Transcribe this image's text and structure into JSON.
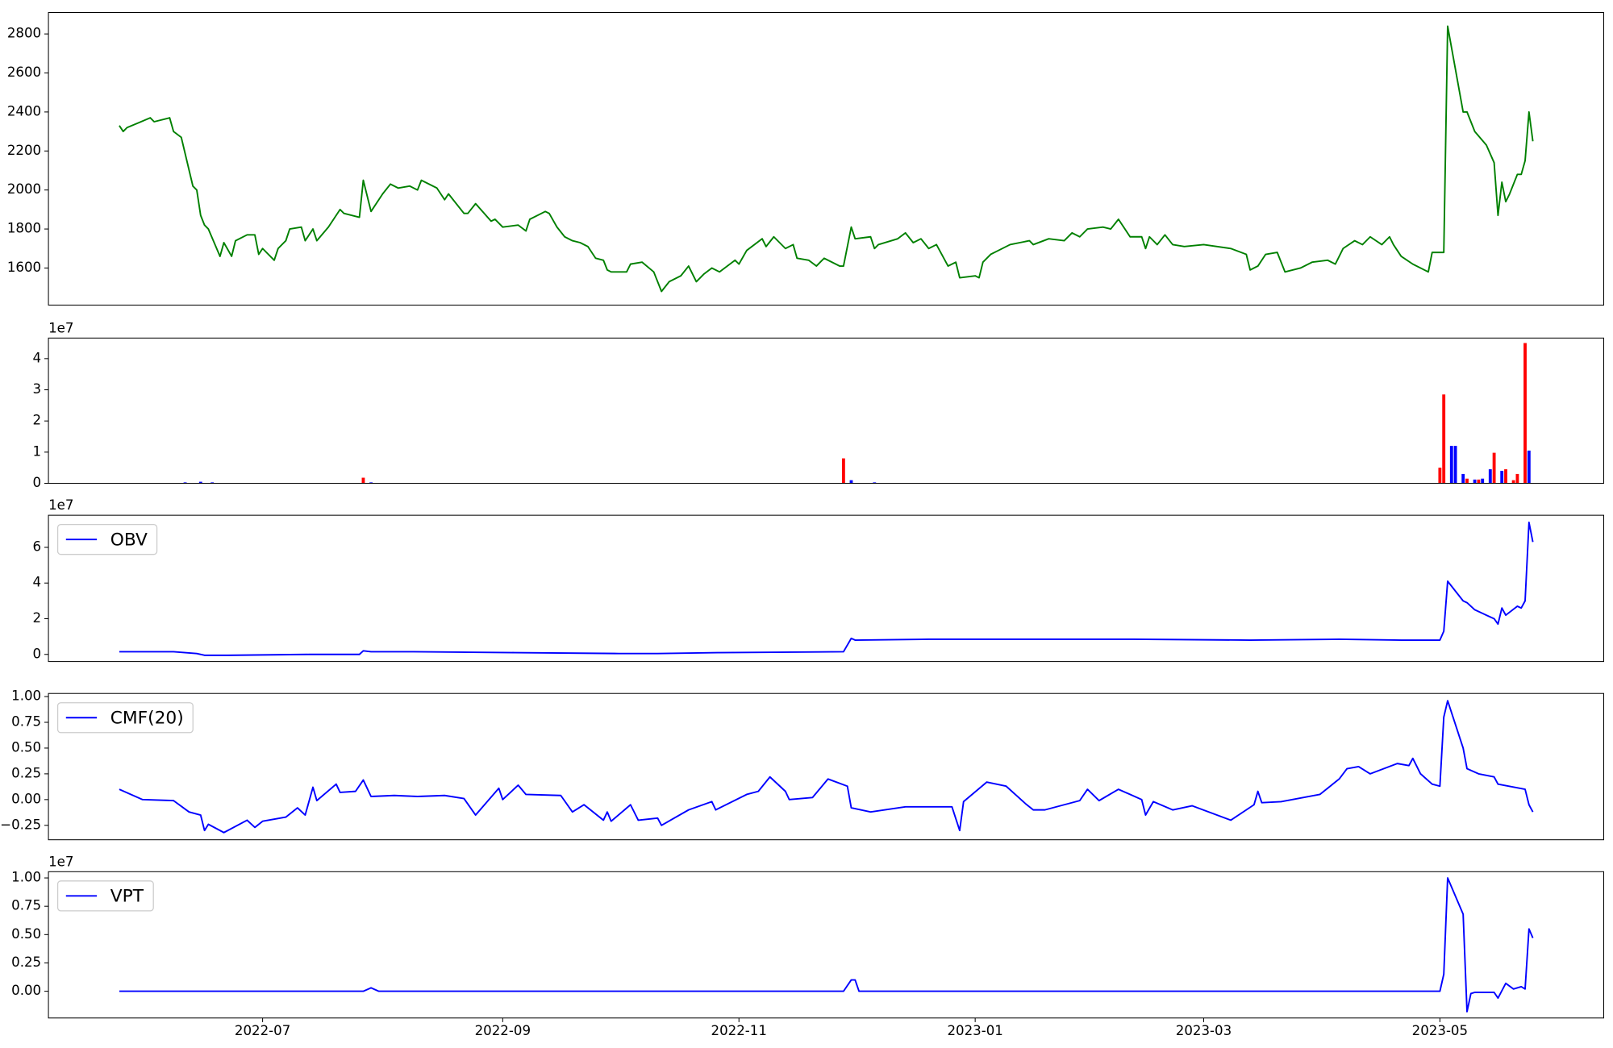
{
  "chart_data": [
    {
      "type": "line",
      "color": "#008000",
      "x": [
        -37,
        -36,
        -35,
        -32,
        -29,
        -28,
        -24,
        -23,
        -21,
        -18,
        -17,
        -16,
        -15,
        -14,
        -11,
        -10,
        -8,
        -7,
        -4,
        -2,
        -1,
        0,
        3,
        4,
        6,
        7,
        10,
        11,
        13,
        14,
        17,
        20,
        21,
        25,
        26,
        28,
        31,
        33,
        35,
        38,
        40,
        41,
        45,
        47,
        48,
        52,
        53,
        55,
        59,
        60,
        62,
        66,
        68,
        69,
        73,
        74,
        76,
        78,
        80,
        82,
        84,
        86,
        88,
        89,
        90,
        94,
        95,
        98,
        101,
        103,
        105,
        108,
        110,
        112,
        114,
        116,
        118,
        120,
        122,
        123,
        125,
        129,
        130,
        132,
        135,
        137,
        138,
        141,
        143,
        145,
        149,
        150,
        152,
        153,
        157,
        158,
        159,
        164,
        166,
        168,
        170,
        172,
        174,
        177,
        179,
        180,
        184,
        185,
        186,
        188,
        190,
        193,
        198,
        199,
        203,
        207,
        209,
        211,
        213,
        217,
        219,
        221,
        224,
        227,
        228,
        229,
        231,
        233,
        235,
        238,
        243,
        250,
        254,
        255,
        257,
        259,
        262,
        264,
        268,
        271,
        275,
        277,
        279,
        282,
        284,
        286,
        289,
        291,
        292,
        294,
        297,
        301,
        302,
        305,
        306,
        310,
        311,
        313,
        316,
        318,
        319,
        320,
        321,
        322,
        324,
        325,
        326,
        327,
        328
      ],
      "values": [
        2330,
        2300,
        2320,
        2345,
        2370,
        2350,
        2370,
        2300,
        2270,
        2020,
        2000,
        1870,
        1820,
        1800,
        1660,
        1730,
        1660,
        1740,
        1770,
        1770,
        1670,
        1700,
        1640,
        1700,
        1740,
        1800,
        1810,
        1740,
        1800,
        1740,
        1810,
        1900,
        1880,
        1860,
        2050,
        1890,
        1980,
        2030,
        2010,
        2020,
        2000,
        2050,
        2010,
        1950,
        1980,
        1880,
        1880,
        1930,
        1840,
        1850,
        1810,
        1820,
        1790,
        1850,
        1890,
        1880,
        1810,
        1760,
        1740,
        1730,
        1710,
        1650,
        1640,
        1590,
        1580,
        1580,
        1620,
        1630,
        1580,
        1480,
        1530,
        1560,
        1610,
        1530,
        1570,
        1600,
        1580,
        1610,
        1640,
        1620,
        1690,
        1750,
        1710,
        1760,
        1700,
        1720,
        1650,
        1640,
        1610,
        1650,
        1610,
        1610,
        1810,
        1750,
        1760,
        1700,
        1720,
        1750,
        1780,
        1730,
        1750,
        1700,
        1720,
        1610,
        1630,
        1550,
        1560,
        1550,
        1630,
        1670,
        1690,
        1720,
        1740,
        1720,
        1750,
        1740,
        1780,
        1760,
        1800,
        1810,
        1800,
        1850,
        1760,
        1760,
        1700,
        1760,
        1720,
        1770,
        1720,
        1710,
        1720,
        1700,
        1670,
        1590,
        1610,
        1670,
        1680,
        1580,
        1600,
        1630,
        1640,
        1620,
        1700,
        1740,
        1720,
        1760,
        1720,
        1760,
        1720,
        1660,
        1620,
        1580,
        1680,
        1680,
        2840,
        2400,
        2400,
        2300,
        2230,
        2140,
        1870,
        2040,
        1940,
        1980,
        2080,
        2080,
        2150,
        2400,
        2250
      ],
      "xlim": [
        -55.3,
        346.3
      ],
      "ylim": [
        1410,
        2910
      ],
      "yticks": [
        1600,
        1800,
        2000,
        2200,
        2400,
        2600,
        2800
      ]
    },
    {
      "type": "bar",
      "offset_label": "1e7",
      "x": [
        -20,
        -16,
        -13,
        26,
        28,
        150,
        152,
        158,
        304,
        305,
        307,
        308,
        310,
        311,
        313,
        314,
        315,
        317,
        318,
        320,
        321,
        323,
        324,
        326,
        327
      ],
      "values": [
        0.03,
        0.05,
        0.03,
        0.18,
        0.03,
        0.8,
        0.1,
        0.03,
        0.5,
        2.85,
        1.2,
        1.2,
        0.3,
        0.15,
        0.12,
        0.12,
        0.15,
        0.45,
        0.98,
        0.4,
        0.45,
        0.1,
        0.3,
        4.5,
        1.05
      ],
      "colors": [
        "#0000ff",
        "#0000ff",
        "#0000ff",
        "#ff0000",
        "#0000ff",
        "#ff0000",
        "#0000ff",
        "#0000ff",
        "#ff0000",
        "#ff0000",
        "#0000ff",
        "#0000ff",
        "#0000ff",
        "#ff0000",
        "#0000ff",
        "#ff0000",
        "#0000ff",
        "#0000ff",
        "#ff0000",
        "#0000ff",
        "#ff0000",
        "#ff0000",
        "#ff0000",
        "#ff0000",
        "#0000ff"
      ],
      "xlim": [
        -55.3,
        346.3
      ],
      "ylim": [
        0,
        4.66
      ],
      "yticks": [
        0,
        1,
        2,
        3,
        4
      ]
    },
    {
      "type": "line",
      "offset_label": "1e7",
      "legend": "upper left",
      "x": [
        -37,
        -23,
        -17,
        -15,
        -9,
        12,
        25,
        26,
        28,
        39,
        65,
        92,
        102,
        118,
        150,
        152,
        153,
        172,
        198,
        225,
        255,
        278,
        294,
        304,
        305,
        306,
        310,
        311,
        313,
        316,
        318,
        319,
        320,
        321,
        324,
        325,
        326,
        327,
        328
      ],
      "series": [
        {
          "name": "OBV",
          "color": "#0000ff",
          "values": [
            0.15,
            0.15,
            0.05,
            -0.05,
            -0.05,
            0.0,
            0.0,
            0.2,
            0.15,
            0.15,
            0.1,
            0.05,
            0.05,
            0.1,
            0.15,
            0.9,
            0.8,
            0.85,
            0.85,
            0.85,
            0.8,
            0.85,
            0.8,
            0.8,
            1.3,
            4.1,
            3.0,
            2.9,
            2.5,
            2.2,
            2.0,
            1.7,
            2.6,
            2.2,
            2.7,
            2.6,
            3.0,
            7.4,
            6.3
          ]
        }
      ],
      "xlim": [
        -55.3,
        346.3
      ],
      "ylim": [
        -0.4,
        7.8
      ],
      "yticks": [
        0,
        2,
        4,
        6
      ]
    },
    {
      "type": "line",
      "legend": "upper left",
      "x": [
        -37,
        -34,
        -31,
        -23,
        -19,
        -16,
        -15,
        -14,
        -10,
        -4,
        -2,
        0,
        6,
        9,
        11,
        13,
        14,
        19,
        20,
        24,
        26,
        28,
        34,
        40,
        47,
        52,
        55,
        61,
        62,
        66,
        68,
        77,
        80,
        83,
        88,
        89,
        90,
        95,
        97,
        102,
        103,
        110,
        116,
        117,
        125,
        128,
        131,
        135,
        136,
        142,
        146,
        151,
        152,
        157,
        166,
        178,
        180,
        181,
        187,
        192,
        197,
        199,
        202,
        211,
        213,
        216,
        221,
        227,
        228,
        230,
        235,
        240,
        250,
        256,
        257,
        258,
        263,
        273,
        278,
        280,
        283,
        286,
        293,
        296,
        297,
        299,
        302,
        304,
        305,
        306,
        310,
        311,
        314,
        318,
        319,
        326,
        327,
        328
      ],
      "series": [
        {
          "name": "CMF(20)",
          "color": "#0000ff",
          "values": [
            0.1,
            0.05,
            0.0,
            -0.01,
            -0.12,
            -0.15,
            -0.3,
            -0.24,
            -0.32,
            -0.2,
            -0.27,
            -0.21,
            -0.17,
            -0.08,
            -0.15,
            0.12,
            -0.01,
            0.15,
            0.07,
            0.08,
            0.19,
            0.03,
            0.04,
            0.03,
            0.04,
            0.01,
            -0.15,
            0.11,
            0.0,
            0.14,
            0.05,
            0.04,
            -0.12,
            -0.05,
            -0.2,
            -0.12,
            -0.21,
            -0.05,
            -0.2,
            -0.18,
            -0.25,
            -0.1,
            -0.02,
            -0.1,
            0.05,
            0.08,
            0.22,
            0.08,
            0.0,
            0.02,
            0.2,
            0.13,
            -0.08,
            -0.12,
            -0.07,
            -0.07,
            -0.3,
            -0.02,
            0.17,
            0.13,
            -0.04,
            -0.1,
            -0.1,
            -0.01,
            0.1,
            -0.01,
            0.1,
            0.0,
            -0.15,
            -0.02,
            -0.1,
            -0.06,
            -0.2,
            -0.05,
            0.08,
            -0.03,
            -0.02,
            0.05,
            0.2,
            0.3,
            0.32,
            0.25,
            0.35,
            0.33,
            0.4,
            0.25,
            0.15,
            0.13,
            0.8,
            0.96,
            0.5,
            0.3,
            0.25,
            0.22,
            0.15,
            0.1,
            -0.05,
            -0.12
          ]
        }
      ],
      "xlim": [
        -55.3,
        346.3
      ],
      "ylim": [
        -0.39,
        1.03
      ],
      "yticks": [
        {
          "value": -0.25,
          "label": "−0.25"
        },
        {
          "value": 0,
          "label": "0.00"
        },
        {
          "value": 0.25,
          "label": "0.25"
        },
        {
          "value": 0.5,
          "label": "0.50"
        },
        {
          "value": 0.75,
          "label": "0.75"
        },
        {
          "value": 1,
          "label": "1.00"
        }
      ]
    },
    {
      "type": "line",
      "offset_label": "1e7",
      "legend": "upper left",
      "x": [
        -37,
        26,
        28,
        30,
        150,
        152,
        153,
        154,
        304,
        305,
        306,
        310,
        311,
        312,
        313,
        318,
        319,
        321,
        323,
        325,
        326,
        327,
        328
      ],
      "series": [
        {
          "name": "VPT",
          "color": "#0000ff",
          "values": [
            0.0,
            0.0,
            0.03,
            0.0,
            0.0,
            0.1,
            0.1,
            0.0,
            0.0,
            0.15,
            1.0,
            0.68,
            -0.18,
            -0.02,
            -0.01,
            -0.01,
            -0.06,
            0.07,
            0.02,
            0.04,
            0.02,
            0.55,
            0.47
          ]
        }
      ],
      "xlim": [
        -55.3,
        346.3
      ],
      "ylim": [
        -0.236,
        1.055
      ],
      "yticks": [
        {
          "value": 0,
          "label": "0.00"
        },
        {
          "value": 0.25,
          "label": "0.25"
        },
        {
          "value": 0.5,
          "label": "0.50"
        },
        {
          "value": 0.75,
          "label": "0.75"
        },
        {
          "value": 1,
          "label": "1.00"
        }
      ],
      "xticks": [
        {
          "value": 0,
          "label": "2022-07"
        },
        {
          "value": 62,
          "label": "2022-09"
        },
        {
          "value": 123,
          "label": "2022-11"
        },
        {
          "value": 184,
          "label": "2023-01"
        },
        {
          "value": 243,
          "label": "2023-03"
        },
        {
          "value": 304,
          "label": "2023-05"
        }
      ]
    }
  ]
}
